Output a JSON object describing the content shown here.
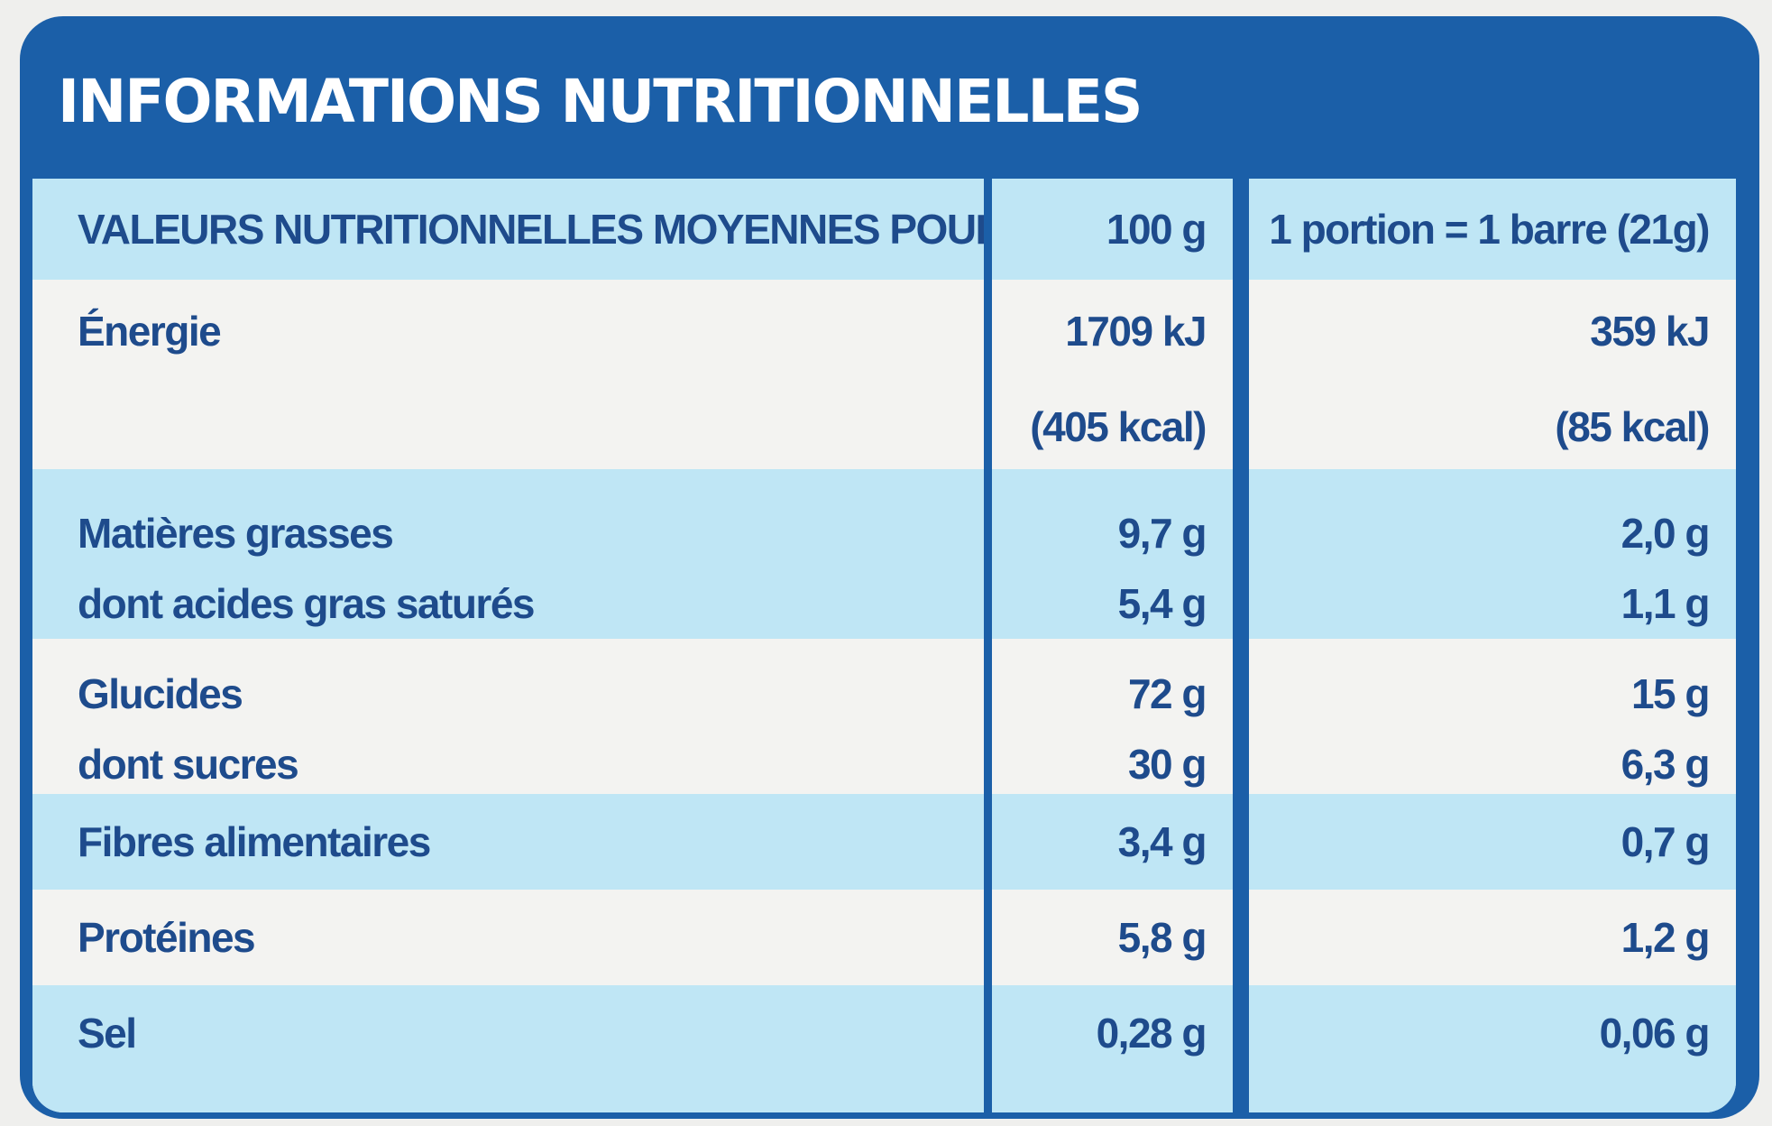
{
  "title": "INFORMATIONS NUTRITIONNELLES",
  "table": {
    "header": {
      "label": "VALEURS NUTRITIONNELLES MOYENNES POUR",
      "col_100g": "100 g",
      "col_portion": "1 portion = 1 barre (21g)"
    },
    "rows": [
      {
        "labels": [
          "Énergie"
        ],
        "per_100g": [
          "1709 kJ",
          "(405 kcal)"
        ],
        "per_portion": [
          "359 kJ",
          "(85 kcal)"
        ]
      },
      {
        "labels": [
          "Matières grasses",
          "dont acides gras saturés"
        ],
        "per_100g": [
          "9,7 g",
          "5,4 g"
        ],
        "per_portion": [
          "2,0 g",
          "1,1 g"
        ]
      },
      {
        "labels": [
          "Glucides",
          "dont sucres"
        ],
        "per_100g": [
          "72 g",
          "30 g"
        ],
        "per_portion": [
          "15 g",
          "6,3 g"
        ]
      },
      {
        "labels": [
          "Fibres alimentaires"
        ],
        "per_100g": [
          "3,4 g"
        ],
        "per_portion": [
          "0,7 g"
        ]
      },
      {
        "labels": [
          "Protéines"
        ],
        "per_100g": [
          "5,8 g"
        ],
        "per_portion": [
          "1,2 g"
        ]
      },
      {
        "labels": [
          "Sel"
        ],
        "per_100g": [
          "0,28 g"
        ],
        "per_portion": [
          "0,06 g"
        ]
      }
    ]
  },
  "colors": {
    "panel_blue": "#1b5fa8",
    "text_blue": "#1e4b8c",
    "band_light_blue": "#bfe6f5",
    "cell_white": "#f3f3f1"
  }
}
